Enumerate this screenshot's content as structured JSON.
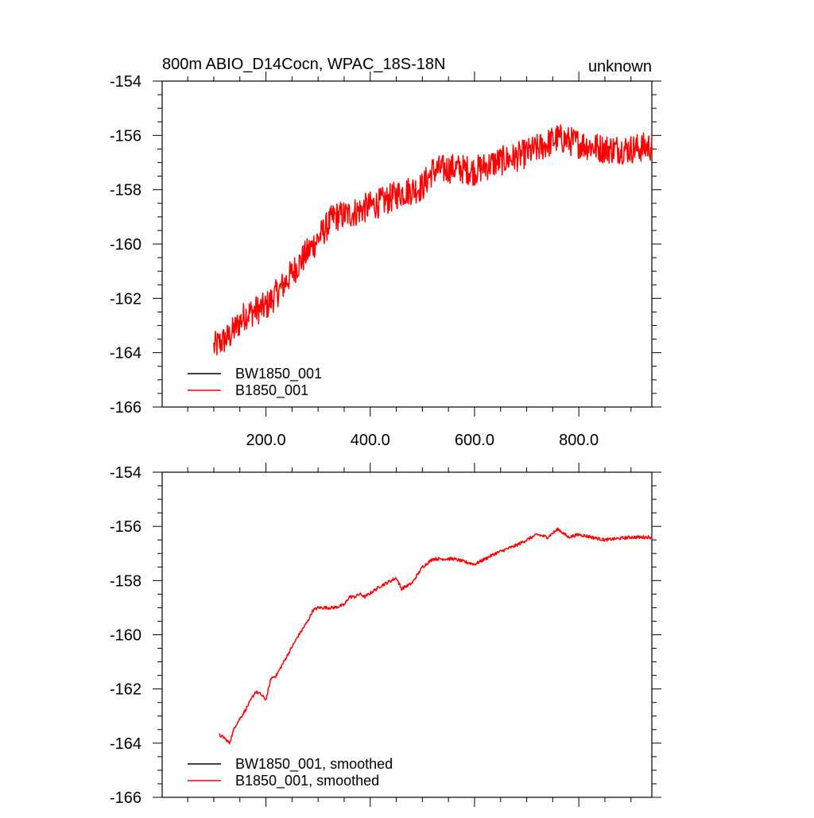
{
  "colors": {
    "background": "#ffffff",
    "axis": "#000000",
    "series_black": "#000000",
    "series_red": "#ff0000"
  },
  "chart_data": [
    {
      "type": "line",
      "panel": "top",
      "title_left": "800m ABIO_D14Cocn, WPAC_18S-18N",
      "title_right": "unknown",
      "xlim": [
        1,
        940
      ],
      "ylim": [
        -166,
        -154
      ],
      "xticks": [
        200,
        400,
        600,
        800
      ],
      "xtick_labels": [
        "200.0",
        "400.0",
        "600.0",
        "800.0"
      ],
      "yticks": [
        -166,
        -164,
        -162,
        -160,
        -158,
        -156,
        -154
      ],
      "ytick_labels": [
        "-166",
        "-164",
        "-162",
        "-160",
        "-158",
        "-156",
        "-154"
      ],
      "legend_position": "lower-left",
      "noise": 0.55,
      "series": [
        {
          "name": "BW1850_001",
          "color": "#000000",
          "x": [],
          "y": []
        },
        {
          "name": "B1850_001",
          "color": "#ff0000",
          "x": [
            100,
            130,
            160,
            200,
            230,
            260,
            300,
            330,
            360,
            400,
            430,
            460,
            500,
            520,
            560,
            600,
            640,
            680,
            720,
            760,
            800,
            850,
            900,
            940
          ],
          "y": [
            -163.8,
            -163.4,
            -162.6,
            -162.3,
            -161.6,
            -160.8,
            -159.8,
            -159.0,
            -158.9,
            -158.6,
            -158.4,
            -158.1,
            -157.9,
            -157.3,
            -157.2,
            -157.3,
            -157.0,
            -156.8,
            -156.5,
            -156.1,
            -156.3,
            -156.5,
            -156.5,
            -156.4
          ]
        }
      ]
    },
    {
      "type": "line",
      "panel": "bottom",
      "xlim": [
        1,
        940
      ],
      "ylim": [
        -166,
        -154
      ],
      "xticks": [
        200,
        400,
        600,
        800
      ],
      "yticks": [
        -166,
        -164,
        -162,
        -160,
        -158,
        -156,
        -154
      ],
      "ytick_labels": [
        "-166",
        "-164",
        "-162",
        "-160",
        "-158",
        "-156",
        "-154"
      ],
      "legend_position": "lower-left",
      "noise": 0.06,
      "series": [
        {
          "name": "BW1850_001, smoothed",
          "color": "#000000",
          "x": [],
          "y": []
        },
        {
          "name": "B1850_001, smoothed",
          "color": "#ff0000",
          "x": [
            110,
            120,
            130,
            140,
            160,
            180,
            190,
            200,
            210,
            220,
            240,
            260,
            280,
            290,
            300,
            330,
            350,
            360,
            370,
            380,
            390,
            420,
            450,
            460,
            480,
            500,
            520,
            530,
            560,
            600,
            640,
            680,
            720,
            740,
            760,
            780,
            800,
            850,
            900,
            940
          ],
          "y": [
            -163.7,
            -163.8,
            -164.0,
            -163.4,
            -162.8,
            -162.1,
            -162.2,
            -162.4,
            -161.6,
            -161.5,
            -160.8,
            -160.1,
            -159.5,
            -159.1,
            -159.0,
            -159.0,
            -158.9,
            -158.6,
            -158.6,
            -158.5,
            -158.6,
            -158.2,
            -157.9,
            -158.3,
            -158.1,
            -157.5,
            -157.2,
            -157.2,
            -157.2,
            -157.4,
            -157.0,
            -156.7,
            -156.3,
            -156.4,
            -156.1,
            -156.4,
            -156.3,
            -156.5,
            -156.4,
            -156.4
          ]
        }
      ]
    }
  ]
}
